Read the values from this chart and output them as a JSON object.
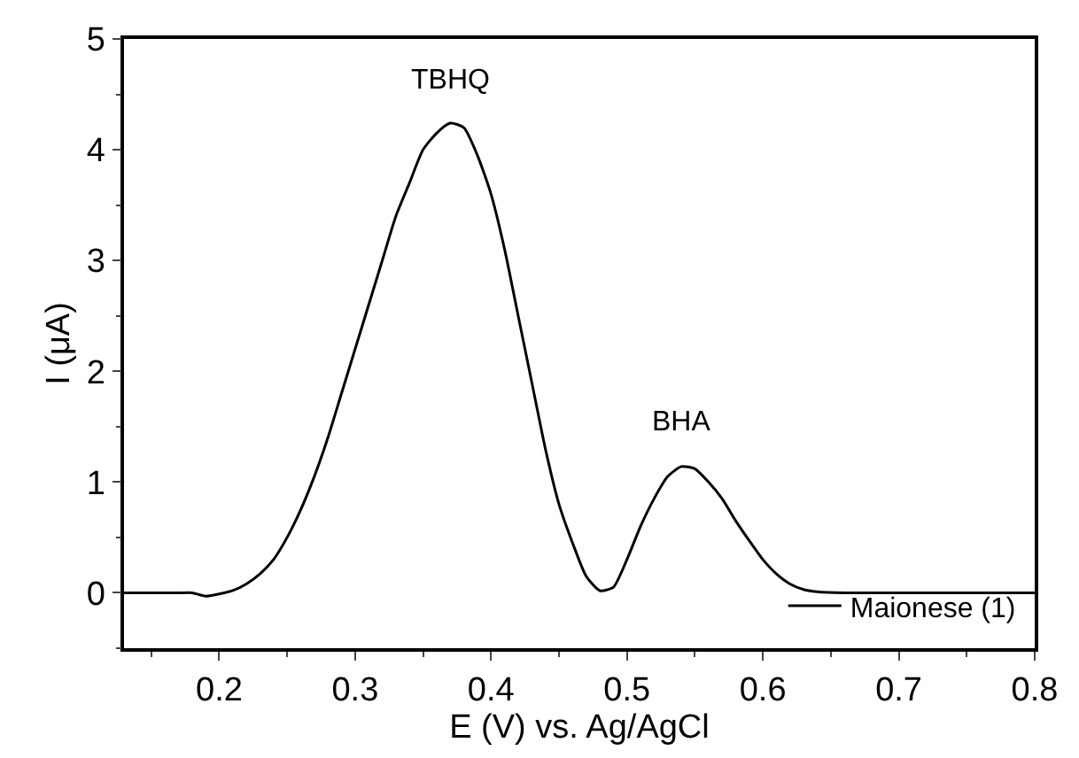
{
  "chart_data": {
    "type": "line",
    "xlabel": "E (V) vs. Ag/AgCl",
    "ylabel": "I (μA)",
    "x": [
      0.13,
      0.15,
      0.17,
      0.18,
      0.19,
      0.2,
      0.21,
      0.22,
      0.23,
      0.24,
      0.25,
      0.26,
      0.27,
      0.28,
      0.29,
      0.3,
      0.31,
      0.32,
      0.33,
      0.34,
      0.35,
      0.36,
      0.37,
      0.38,
      0.39,
      0.4,
      0.41,
      0.42,
      0.43,
      0.44,
      0.45,
      0.46,
      0.47,
      0.48,
      0.49,
      0.5,
      0.51,
      0.52,
      0.53,
      0.54,
      0.55,
      0.56,
      0.57,
      0.58,
      0.59,
      0.6,
      0.61,
      0.62,
      0.63,
      0.64,
      0.66,
      0.7,
      0.75,
      0.8
    ],
    "series": [
      {
        "name": "Maionese (1)",
        "color": "#000000",
        "values": [
          0,
          0,
          0,
          0,
          -0.03,
          -0.01,
          0.02,
          0.08,
          0.17,
          0.3,
          0.5,
          0.75,
          1.05,
          1.4,
          1.8,
          2.2,
          2.6,
          3.0,
          3.4,
          3.7,
          4.0,
          4.15,
          4.24,
          4.2,
          3.95,
          3.6,
          3.1,
          2.5,
          1.9,
          1.3,
          0.8,
          0.45,
          0.15,
          0.02,
          0.05,
          0.3,
          0.6,
          0.85,
          1.05,
          1.14,
          1.12,
          1.0,
          0.85,
          0.65,
          0.47,
          0.3,
          0.17,
          0.08,
          0.03,
          0.01,
          0,
          0,
          0,
          0
        ]
      }
    ],
    "xlim": [
      0.13,
      0.8
    ],
    "xticks": [
      0.2,
      0.3,
      0.4,
      0.5,
      0.6,
      0.7,
      0.8
    ],
    "ylim": [
      -0.5,
      5
    ],
    "yticks": [
      0,
      1,
      2,
      3,
      4,
      5
    ],
    "annotations": [
      {
        "text": "TBHQ",
        "x": 0.37,
        "y": 4.24
      },
      {
        "text": "BHA",
        "x": 0.54,
        "y": 1.14
      }
    ],
    "legend": "bottom right",
    "marker": "none",
    "line_style": "solid"
  }
}
